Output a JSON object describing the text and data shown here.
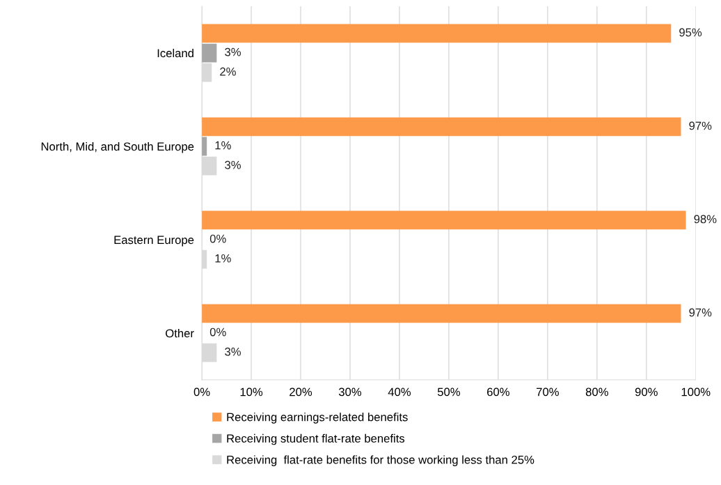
{
  "chart_data": {
    "type": "bar",
    "orientation": "horizontal",
    "categories": [
      "Iceland",
      "North, Mid, and South Europe",
      "Eastern Europe",
      "Other"
    ],
    "series": [
      {
        "name": "Receiving earnings-related benefits",
        "color": "#fd9a4a",
        "values": [
          95,
          97,
          98,
          97
        ],
        "value_labels": [
          "95%",
          "97%",
          "98%",
          "97%"
        ]
      },
      {
        "name": "Receiving student flat-rate benefits",
        "color": "#a5a5a5",
        "values": [
          3,
          1,
          0,
          0
        ],
        "value_labels": [
          "3%",
          "1%",
          "0%",
          "0%"
        ]
      },
      {
        "name": "Receiving  flat-rate benefits for those working less than 25%",
        "color": "#d9d9d9",
        "values": [
          2,
          3,
          1,
          3
        ],
        "value_labels": [
          "2%",
          "3%",
          "1%",
          "3%"
        ]
      }
    ],
    "xlim": [
      0,
      100
    ],
    "xticks": [
      {
        "value": 0,
        "label": "0%"
      },
      {
        "value": 10,
        "label": "10%"
      },
      {
        "value": 20,
        "label": "20%"
      },
      {
        "value": 30,
        "label": "30%"
      },
      {
        "value": 40,
        "label": "40%"
      },
      {
        "value": 50,
        "label": "50%"
      },
      {
        "value": 60,
        "label": "60%"
      },
      {
        "value": 70,
        "label": "70%"
      },
      {
        "value": 80,
        "label": "80%"
      },
      {
        "value": 90,
        "label": "90%"
      },
      {
        "value": 100,
        "label": "100%"
      }
    ],
    "grid": "x",
    "legend": "bottom"
  }
}
